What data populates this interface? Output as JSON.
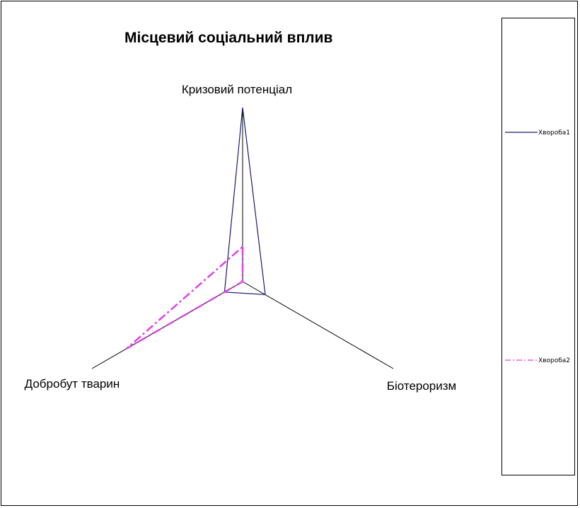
{
  "chart_data": {
    "type": "radar",
    "title": "Місцевий соціальний вплив",
    "axes": [
      "Кризовий потенціал",
      "Біотероризм",
      "Добробут тварин"
    ],
    "range": [
      0,
      1
    ],
    "series": [
      {
        "name": "Хвороба1",
        "values": [
          1.0,
          0.15,
          0.12
        ],
        "color": "#1a1a6e",
        "style": "solid"
      },
      {
        "name": "Хвороба2",
        "values": [
          0.2,
          0.0,
          0.77
        ],
        "color": "#e040e8",
        "style": "dashdot"
      }
    ],
    "legend_position": "right",
    "grid": false
  }
}
